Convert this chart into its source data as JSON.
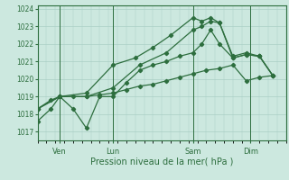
{
  "background_color": "#cce8df",
  "grid_color": "#aacfc5",
  "line_color": "#2d6e3e",
  "tick_label_color": "#2d6e3e",
  "xlabel": "Pression niveau de la mer( hPa )",
  "ylim": [
    1016.5,
    1024.2
  ],
  "yticks": [
    1017,
    1018,
    1019,
    1020,
    1021,
    1022,
    1023,
    1024
  ],
  "xlim": [
    0,
    56
  ],
  "day_positions": [
    5,
    17,
    35,
    48
  ],
  "day_labels": [
    "Ven",
    "Lun",
    "Sam",
    "Dim"
  ],
  "vline_positions": [
    5,
    17,
    35,
    48
  ],
  "series1_x": [
    0,
    3,
    5,
    8,
    11,
    14,
    17,
    20,
    23,
    26,
    29,
    32,
    35,
    38,
    41,
    44,
    47,
    50,
    53
  ],
  "series1_y": [
    1017.6,
    1018.3,
    1019.0,
    1019.0,
    1019.0,
    1019.1,
    1019.2,
    1019.4,
    1019.6,
    1019.7,
    1019.9,
    1020.1,
    1020.3,
    1020.5,
    1020.6,
    1020.8,
    1019.9,
    1020.1,
    1020.2
  ],
  "series2_x": [
    0,
    3,
    5,
    8,
    11,
    14,
    17,
    20,
    23,
    26,
    29,
    32,
    35,
    37,
    39,
    41,
    44,
    47,
    50,
    53
  ],
  "series2_y": [
    1018.3,
    1018.8,
    1019.0,
    1018.3,
    1017.2,
    1019.0,
    1019.0,
    1019.8,
    1020.5,
    1020.8,
    1021.0,
    1021.3,
    1021.5,
    1022.0,
    1022.8,
    1022.0,
    1021.2,
    1021.4,
    1021.3,
    1020.2
  ],
  "series3_x": [
    0,
    5,
    11,
    17,
    23,
    29,
    35,
    37,
    39,
    41,
    44,
    47,
    50,
    53
  ],
  "series3_y": [
    1018.3,
    1019.0,
    1019.0,
    1019.5,
    1020.8,
    1021.5,
    1022.8,
    1023.0,
    1023.3,
    1023.2,
    1021.2,
    1021.4,
    1021.3,
    1020.2
  ],
  "series4_x": [
    0,
    5,
    11,
    17,
    22,
    26,
    30,
    35,
    37,
    39,
    41,
    44,
    47,
    50,
    53
  ],
  "series4_y": [
    1018.3,
    1019.0,
    1019.2,
    1020.8,
    1021.2,
    1021.8,
    1022.5,
    1023.5,
    1023.3,
    1023.5,
    1023.2,
    1021.3,
    1021.5,
    1021.3,
    1020.2
  ]
}
